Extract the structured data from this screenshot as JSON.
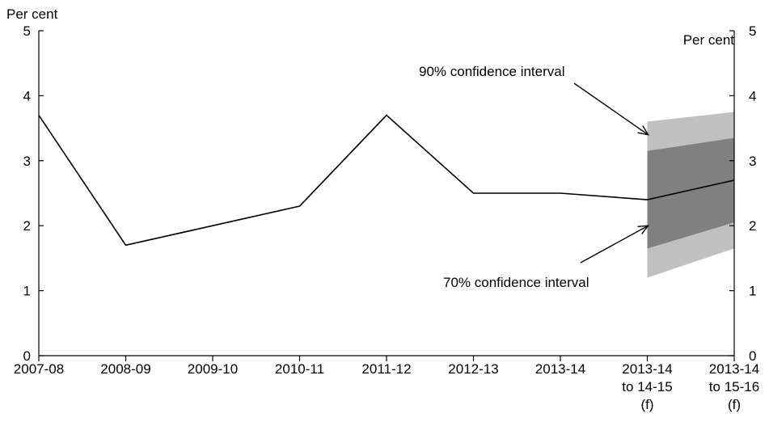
{
  "chart_data": {
    "type": "line",
    "left_axis_label": "Per cent",
    "right_axis_label": "Per cent",
    "categories": [
      [
        "2007-08"
      ],
      [
        "2008-09"
      ],
      [
        "2009-10"
      ],
      [
        "2010-11"
      ],
      [
        "2011-12"
      ],
      [
        "2012-13"
      ],
      [
        "2013-14"
      ],
      [
        "2013-14",
        "to 14-15",
        "(f)"
      ],
      [
        "2013-14",
        "to 15-16",
        "(f)"
      ]
    ],
    "ylim": [
      0,
      5
    ],
    "yticks": [
      0,
      1,
      2,
      3,
      4,
      5
    ],
    "series": [
      {
        "values": [
          3.7,
          1.7,
          2.0,
          2.3,
          3.7,
          2.5,
          2.5,
          2.4,
          2.7
        ],
        "color": "#000000"
      }
    ],
    "bands": [
      {
        "label": "90% confidence interval",
        "from_index": 7,
        "to_index": 8,
        "low": [
          1.2,
          1.65
        ],
        "high": [
          3.6,
          3.75
        ],
        "color": "#c0c0c0"
      },
      {
        "label": "70% confidence interval",
        "from_index": 7,
        "to_index": 8,
        "low": [
          1.65,
          2.05
        ],
        "high": [
          3.15,
          3.35
        ],
        "color": "#808080"
      }
    ],
    "annotations": [
      {
        "text": "90% confidence interval",
        "arrow_to": [
          7,
          3.4
        ]
      },
      {
        "text": "70% confidence interval",
        "arrow_to": [
          7,
          2.0
        ]
      }
    ]
  }
}
